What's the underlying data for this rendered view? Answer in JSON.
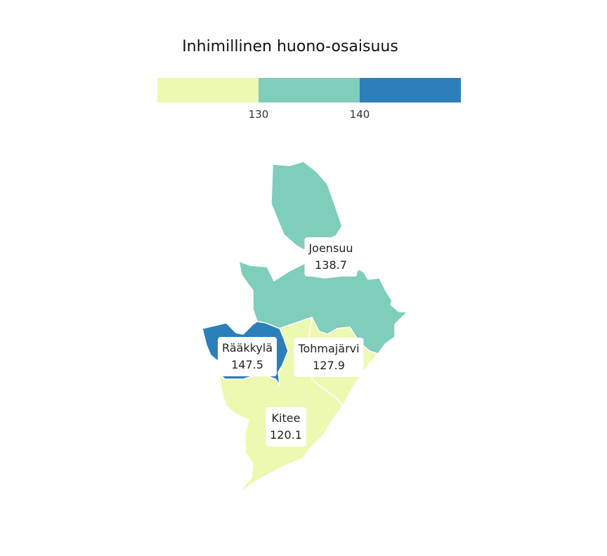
{
  "title": "Inhimillinen huono-osaisuus",
  "legend": {
    "bins": [
      {
        "color": "#edf8b1"
      },
      {
        "color": "#7fcdbb"
      },
      {
        "color": "#2c7fb8"
      }
    ],
    "ticks": [
      "130",
      "140"
    ]
  },
  "regions": [
    {
      "name": "Joensuu",
      "value": "138.7",
      "color": "#7fcdbb"
    },
    {
      "name": "Rääkkylä",
      "value": "147.5",
      "color": "#2c7fb8"
    },
    {
      "name": "Tohmajärvi",
      "value": "127.9",
      "color": "#edf8b1"
    },
    {
      "name": "Kitee",
      "value": "120.1",
      "color": "#edf8b1"
    }
  ]
}
